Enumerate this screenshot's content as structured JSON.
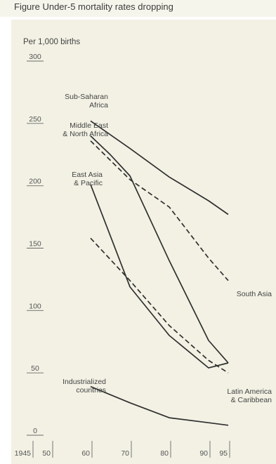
{
  "header": {
    "caption": "Figure Under-5 mortality rates dropping"
  },
  "chart_data": {
    "type": "line",
    "ylabel": "Per 1,000 births",
    "ylim": [
      0,
      300
    ],
    "xlim": [
      1945,
      1995
    ],
    "y_ticks": [
      0,
      50,
      100,
      150,
      200,
      250,
      300
    ],
    "x_ticks": [
      {
        "value": 1945,
        "label": "1945"
      },
      {
        "value": 1950,
        "label": "50"
      },
      {
        "value": 1960,
        "label": "60"
      },
      {
        "value": 1970,
        "label": "70"
      },
      {
        "value": 1980,
        "label": "80"
      },
      {
        "value": 1990,
        "label": "90"
      },
      {
        "value": 1995,
        "label": "95"
      }
    ],
    "grid": false,
    "series": [
      {
        "name": "Sub-Saharan Africa",
        "label_lines": [
          "Sub-Saharan",
          "Africa"
        ],
        "style": "solid",
        "x": [
          1960,
          1970,
          1980,
          1990,
          1995
        ],
        "y": [
          252,
          230,
          207,
          188,
          177
        ]
      },
      {
        "name": "Middle East & North Africa",
        "label_lines": [
          "Middle East",
          "& North Africa"
        ],
        "style": "solid",
        "x": [
          1960,
          1965,
          1970,
          1980,
          1990,
          1995
        ],
        "y": [
          240,
          225,
          208,
          140,
          76,
          58
        ]
      },
      {
        "name": "South Asia",
        "label_lines": [
          "South Asia"
        ],
        "style": "dashed",
        "x": [
          1960,
          1970,
          1980,
          1990,
          1995
        ],
        "y": [
          236,
          205,
          183,
          142,
          124
        ]
      },
      {
        "name": "East Asia & Pacific",
        "label_lines": [
          "East Asia",
          "& Pacific"
        ],
        "style": "solid",
        "x": [
          1960,
          1965,
          1970,
          1980,
          1990,
          1995
        ],
        "y": [
          201,
          160,
          119,
          80,
          54,
          58
        ]
      },
      {
        "name": "Latin America & Caribbean",
        "label_lines": [
          "Latin America",
          "& Caribbean"
        ],
        "style": "dashed",
        "x": [
          1960,
          1970,
          1980,
          1990,
          1995
        ],
        "y": [
          158,
          124,
          88,
          60,
          50
        ]
      },
      {
        "name": "Industrialized countries",
        "label_lines": [
          "Industrialized",
          "countries"
        ],
        "style": "solid",
        "x": [
          1960,
          1970,
          1980,
          1990,
          1995
        ],
        "y": [
          39,
          26,
          14,
          10,
          8
        ]
      }
    ]
  }
}
